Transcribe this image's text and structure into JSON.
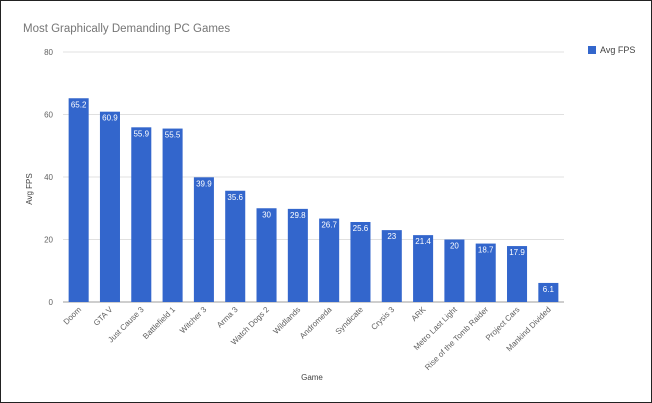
{
  "chart_data": {
    "type": "bar",
    "title": "Most Graphically Demanding PC Games",
    "xlabel": "Game",
    "ylabel": "Avg FPS",
    "ylim": [
      0,
      80
    ],
    "yticks": [
      0,
      20,
      40,
      60,
      80
    ],
    "grid": true,
    "legend_position": "top-right",
    "categories": [
      "Doom",
      "GTA V",
      "Just Cause 3",
      "Battlefield 1",
      "Witcher 3",
      "Arma 3",
      "Watch Dogs 2",
      "Wildlands",
      "Andromeda",
      "Syndicate",
      "Crysis 3",
      "ARK",
      "Metro Last Light",
      "Rise of the Tomb Raider",
      "Project Cars",
      "Mankind Divided"
    ],
    "series": [
      {
        "name": "Avg FPS",
        "color": "#3366cc",
        "values": [
          65.2,
          60.9,
          55.9,
          55.5,
          39.9,
          35.6,
          30,
          29.8,
          26.7,
          25.6,
          23,
          21.4,
          20,
          18.7,
          17.9,
          6.1
        ],
        "labels": [
          "65.2",
          "60.9",
          "55.9",
          "55.5",
          "39.9",
          "35.6",
          "30",
          "29.8",
          "26.7",
          "25.6",
          "23",
          "21.4",
          "20",
          "18.7",
          "17.9",
          "6.1"
        ]
      }
    ]
  }
}
